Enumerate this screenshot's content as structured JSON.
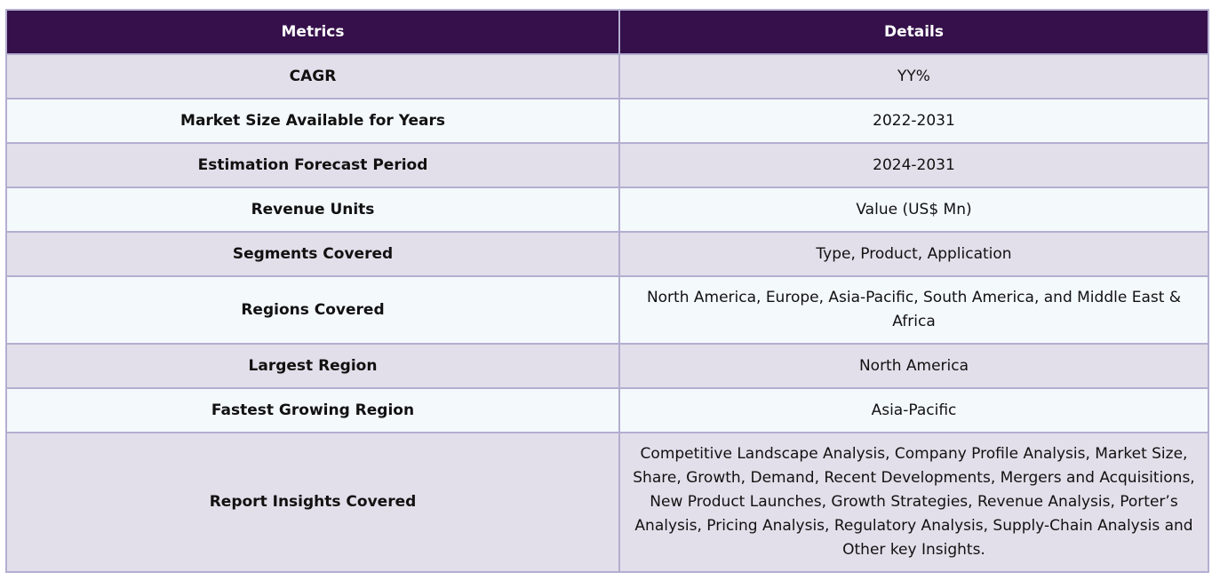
{
  "header": {
    "metrics": "Metrics",
    "details": "Details"
  },
  "rows": [
    {
      "metric": "CAGR",
      "detail": "YY%"
    },
    {
      "metric": "Market Size Available for Years",
      "detail": "2022-2031"
    },
    {
      "metric": "Estimation Forecast Period",
      "detail": "2024-2031"
    },
    {
      "metric": "Revenue Units",
      "detail": "Value (US$ Mn)"
    },
    {
      "metric": "Segments Covered",
      "detail": "Type, Product, Application"
    },
    {
      "metric": "Regions Covered",
      "detail": "North America, Europe, Asia-Pacific, South America, and Middle East & Africa"
    },
    {
      "metric": "Largest Region",
      "detail": "North America"
    },
    {
      "metric": "Fastest Growing Region",
      "detail": "Asia-Pacific"
    },
    {
      "metric": "Report Insights Covered",
      "detail": "Competitive Landscape Analysis, Company Profile Analysis, Market Size, Share, Growth, Demand, Recent Developments, Mergers and Acquisitions, New Product Launches, Growth Strategies, Revenue Analysis, Porter’s Analysis, Pricing Analysis, Regulatory Analysis, Supply-Chain Analysis and Other key Insights."
    }
  ],
  "colors": {
    "header_bg": "#35104a",
    "row_odd_bg": "#e3dfea",
    "row_even_bg": "#f4f9fc",
    "border": "#b3aed0"
  }
}
